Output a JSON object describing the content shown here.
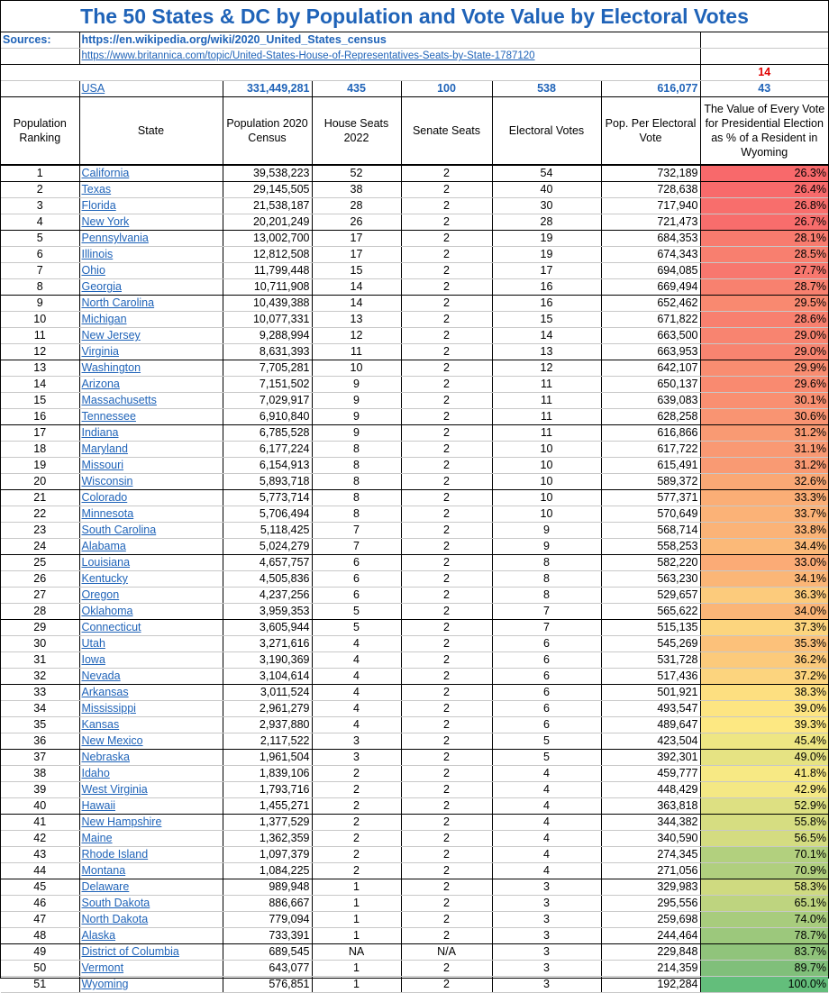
{
  "title": "The 50 States & DC by Population and Vote Value by Electoral Votes",
  "sources_label": "Sources:",
  "source1": "https://en.wikipedia.org/wiki/2020_United_States_census",
  "source2": "https://www.britannica.com/topic/United-States-House-of-Representatives-Seats-by-State-1787120",
  "red_top": "14",
  "red_bottom": "43",
  "usa": {
    "label": "USA",
    "population": "331,449,281",
    "house": "435",
    "senate": "100",
    "electoral": "538",
    "pop_per_ev": "616,077"
  },
  "headers": {
    "rank": "Population Ranking",
    "state": "State",
    "population": "Population 2020 Census",
    "house": "House Seats 2022",
    "senate": "Senate Seats",
    "electoral": "Electoral Votes",
    "pop_per_ev": "Pop. Per Electoral Vote",
    "value": "The Value of Every Vote for Presidential Election as % of a Resident in Wyoming"
  },
  "rows": [
    {
      "rank": "1",
      "state": "California",
      "pop": "39,538,223",
      "house": "52",
      "senate": "2",
      "ev": "54",
      "ppev": "732,189",
      "pct": "26.3%",
      "color": "#f8696b"
    },
    {
      "rank": "2",
      "state": "Texas",
      "pop": "29,145,505",
      "house": "38",
      "senate": "2",
      "ev": "40",
      "ppev": "728,638",
      "pct": "26.4%",
      "color": "#f86a6b"
    },
    {
      "rank": "3",
      "state": "Florida",
      "pop": "21,538,187",
      "house": "28",
      "senate": "2",
      "ev": "30",
      "ppev": "717,940",
      "pct": "26.8%",
      "color": "#f86e6c"
    },
    {
      "rank": "4",
      "state": "New York",
      "pop": "20,201,249",
      "house": "26",
      "senate": "2",
      "ev": "28",
      "ppev": "721,473",
      "pct": "26.7%",
      "color": "#f86d6c"
    },
    {
      "rank": "5",
      "state": "Pennsylvania",
      "pop": "13,002,700",
      "house": "17",
      "senate": "2",
      "ev": "19",
      "ppev": "684,353",
      "pct": "28.1%",
      "color": "#f87b6e"
    },
    {
      "rank": "6",
      "state": "Illinois",
      "pop": "12,812,508",
      "house": "17",
      "senate": "2",
      "ev": "19",
      "ppev": "674,343",
      "pct": "28.5%",
      "color": "#f87f6f"
    },
    {
      "rank": "7",
      "state": "Ohio",
      "pop": "11,799,448",
      "house": "15",
      "senate": "2",
      "ev": "17",
      "ppev": "694,085",
      "pct": "27.7%",
      "color": "#f8776e"
    },
    {
      "rank": "8",
      "state": "Georgia",
      "pop": "10,711,908",
      "house": "14",
      "senate": "2",
      "ev": "16",
      "ppev": "669,494",
      "pct": "28.7%",
      "color": "#f8816f"
    },
    {
      "rank": "9",
      "state": "North Carolina",
      "pop": "10,439,388",
      "house": "14",
      "senate": "2",
      "ev": "16",
      "ppev": "652,462",
      "pct": "29.5%",
      "color": "#f98970"
    },
    {
      "rank": "10",
      "state": "Michigan",
      "pop": "10,077,331",
      "house": "13",
      "senate": "2",
      "ev": "15",
      "ppev": "671,822",
      "pct": "28.6%",
      "color": "#f8806f"
    },
    {
      "rank": "11",
      "state": "New Jersey",
      "pop": "9,288,994",
      "house": "12",
      "senate": "2",
      "ev": "14",
      "ppev": "663,500",
      "pct": "29.0%",
      "color": "#f88470"
    },
    {
      "rank": "12",
      "state": "Virginia",
      "pop": "8,631,393",
      "house": "11",
      "senate": "2",
      "ev": "13",
      "ppev": "663,953",
      "pct": "29.0%",
      "color": "#f88470"
    },
    {
      "rank": "13",
      "state": "Washington",
      "pop": "7,705,281",
      "house": "10",
      "senate": "2",
      "ev": "12",
      "ppev": "642,107",
      "pct": "29.9%",
      "color": "#f98d71"
    },
    {
      "rank": "14",
      "state": "Arizona",
      "pop": "7,151,502",
      "house": "9",
      "senate": "2",
      "ev": "11",
      "ppev": "650,137",
      "pct": "29.6%",
      "color": "#f98a70"
    },
    {
      "rank": "15",
      "state": "Massachusetts",
      "pop": "7,029,917",
      "house": "9",
      "senate": "2",
      "ev": "11",
      "ppev": "639,083",
      "pct": "30.1%",
      "color": "#f98f71"
    },
    {
      "rank": "16",
      "state": "Tennessee",
      "pop": "6,910,840",
      "house": "9",
      "senate": "2",
      "ev": "11",
      "ppev": "628,258",
      "pct": "30.6%",
      "color": "#f99472"
    },
    {
      "rank": "17",
      "state": "Indiana",
      "pop": "6,785,528",
      "house": "9",
      "senate": "2",
      "ev": "11",
      "ppev": "616,866",
      "pct": "31.2%",
      "color": "#f99a73"
    },
    {
      "rank": "18",
      "state": "Maryland",
      "pop": "6,177,224",
      "house": "8",
      "senate": "2",
      "ev": "10",
      "ppev": "617,722",
      "pct": "31.1%",
      "color": "#f99973"
    },
    {
      "rank": "19",
      "state": "Missouri",
      "pop": "6,154,913",
      "house": "8",
      "senate": "2",
      "ev": "10",
      "ppev": "615,491",
      "pct": "31.2%",
      "color": "#f99a73"
    },
    {
      "rank": "20",
      "state": "Wisconsin",
      "pop": "5,893,718",
      "house": "8",
      "senate": "2",
      "ev": "10",
      "ppev": "589,372",
      "pct": "32.6%",
      "color": "#faa875"
    },
    {
      "rank": "21",
      "state": "Colorado",
      "pop": "5,773,714",
      "house": "8",
      "senate": "2",
      "ev": "10",
      "ppev": "577,371",
      "pct": "33.3%",
      "color": "#fbae76"
    },
    {
      "rank": "22",
      "state": "Minnesota",
      "pop": "5,706,494",
      "house": "8",
      "senate": "2",
      "ev": "10",
      "ppev": "570,649",
      "pct": "33.7%",
      "color": "#fbb277"
    },
    {
      "rank": "23",
      "state": "South Carolina",
      "pop": "5,118,425",
      "house": "7",
      "senate": "2",
      "ev": "9",
      "ppev": "568,714",
      "pct": "33.8%",
      "color": "#fbb377"
    },
    {
      "rank": "24",
      "state": "Alabama",
      "pop": "5,024,279",
      "house": "7",
      "senate": "2",
      "ev": "9",
      "ppev": "558,253",
      "pct": "34.4%",
      "color": "#fbb978"
    },
    {
      "rank": "25",
      "state": "Louisiana",
      "pop": "4,657,757",
      "house": "6",
      "senate": "2",
      "ev": "8",
      "ppev": "582,220",
      "pct": "33.0%",
      "color": "#fbab76"
    },
    {
      "rank": "26",
      "state": "Kentucky",
      "pop": "4,505,836",
      "house": "6",
      "senate": "2",
      "ev": "8",
      "ppev": "563,230",
      "pct": "34.1%",
      "color": "#fbb677"
    },
    {
      "rank": "27",
      "state": "Oregon",
      "pop": "4,237,256",
      "house": "6",
      "senate": "2",
      "ev": "8",
      "ppev": "529,657",
      "pct": "36.3%",
      "color": "#fccb7c"
    },
    {
      "rank": "28",
      "state": "Oklahoma",
      "pop": "3,959,353",
      "house": "5",
      "senate": "2",
      "ev": "7",
      "ppev": "565,622",
      "pct": "34.0%",
      "color": "#fbb577"
    },
    {
      "rank": "29",
      "state": "Connecticut",
      "pop": "3,605,944",
      "house": "5",
      "senate": "2",
      "ev": "7",
      "ppev": "515,135",
      "pct": "37.3%",
      "color": "#fcd57e"
    },
    {
      "rank": "30",
      "state": "Utah",
      "pop": "3,271,616",
      "house": "4",
      "senate": "2",
      "ev": "6",
      "ppev": "545,269",
      "pct": "35.3%",
      "color": "#fcc17a"
    },
    {
      "rank": "31",
      "state": "Iowa",
      "pop": "3,190,369",
      "house": "4",
      "senate": "2",
      "ev": "6",
      "ppev": "531,728",
      "pct": "36.2%",
      "color": "#fcca7b"
    },
    {
      "rank": "32",
      "state": "Nevada",
      "pop": "3,104,614",
      "house": "4",
      "senate": "2",
      "ev": "6",
      "ppev": "517,436",
      "pct": "37.2%",
      "color": "#fcd47e"
    },
    {
      "rank": "33",
      "state": "Arkansas",
      "pop": "3,011,524",
      "house": "4",
      "senate": "2",
      "ev": "6",
      "ppev": "501,921",
      "pct": "38.3%",
      "color": "#fddf80"
    },
    {
      "rank": "34",
      "state": "Mississippi",
      "pop": "2,961,279",
      "house": "4",
      "senate": "2",
      "ev": "6",
      "ppev": "493,547",
      "pct": "39.0%",
      "color": "#fde582"
    },
    {
      "rank": "35",
      "state": "Kansas",
      "pop": "2,937,880",
      "house": "4",
      "senate": "2",
      "ev": "6",
      "ppev": "489,647",
      "pct": "39.3%",
      "color": "#fde882"
    },
    {
      "rank": "36",
      "state": "New Mexico",
      "pop": "2,117,522",
      "house": "3",
      "senate": "2",
      "ev": "5",
      "ppev": "423,504",
      "pct": "45.4%",
      "color": "#eee683"
    },
    {
      "rank": "37",
      "state": "Nebraska",
      "pop": "1,961,504",
      "house": "3",
      "senate": "2",
      "ev": "5",
      "ppev": "392,301",
      "pct": "49.0%",
      "color": "#e6e383"
    },
    {
      "rank": "38",
      "state": "Idaho",
      "pop": "1,839,106",
      "house": "2",
      "senate": "2",
      "ev": "4",
      "ppev": "459,777",
      "pct": "41.8%",
      "color": "#f7e984"
    },
    {
      "rank": "39",
      "state": "West Virginia",
      "pop": "1,793,716",
      "house": "2",
      "senate": "2",
      "ev": "4",
      "ppev": "448,429",
      "pct": "42.9%",
      "color": "#f4e884"
    },
    {
      "rank": "40",
      "state": "Hawaii",
      "pop": "1,455,271",
      "house": "2",
      "senate": "2",
      "ev": "4",
      "ppev": "363,818",
      "pct": "52.9%",
      "color": "#dde082"
    },
    {
      "rank": "41",
      "state": "New Hampshire",
      "pop": "1,377,529",
      "house": "2",
      "senate": "2",
      "ev": "4",
      "ppev": "344,382",
      "pct": "55.8%",
      "color": "#d6dd81"
    },
    {
      "rank": "42",
      "state": "Maine",
      "pop": "1,362,359",
      "house": "2",
      "senate": "2",
      "ev": "4",
      "ppev": "340,590",
      "pct": "56.5%",
      "color": "#d4dc81"
    },
    {
      "rank": "43",
      "state": "Rhode Island",
      "pop": "1,097,379",
      "house": "2",
      "senate": "2",
      "ev": "4",
      "ppev": "274,345",
      "pct": "70.1%",
      "color": "#b2d07e"
    },
    {
      "rank": "44",
      "state": "Montana",
      "pop": "1,084,225",
      "house": "2",
      "senate": "2",
      "ev": "4",
      "ppev": "271,056",
      "pct": "70.9%",
      "color": "#b0cf7e"
    },
    {
      "rank": "45",
      "state": "Delaware",
      "pop": "989,948",
      "house": "1",
      "senate": "2",
      "ev": "3",
      "ppev": "329,983",
      "pct": "58.3%",
      "color": "#cfda80"
    },
    {
      "rank": "46",
      "state": "South Dakota",
      "pop": "886,667",
      "house": "1",
      "senate": "2",
      "ev": "3",
      "ppev": "295,556",
      "pct": "65.1%",
      "color": "#bed47f"
    },
    {
      "rank": "47",
      "state": "North Dakota",
      "pop": "779,094",
      "house": "1",
      "senate": "2",
      "ev": "3",
      "ppev": "259,698",
      "pct": "74.0%",
      "color": "#a8cc7d"
    },
    {
      "rank": "48",
      "state": "Alaska",
      "pop": "733,391",
      "house": "1",
      "senate": "2",
      "ev": "3",
      "ppev": "244,464",
      "pct": "78.7%",
      "color": "#9cc87c"
    },
    {
      "rank": "49",
      "state": "District of Columbia",
      "pop": "689,545",
      "house": "NA",
      "senate": "N/A",
      "ev": "3",
      "ppev": "229,848",
      "pct": "83.7%",
      "color": "#90c47b"
    },
    {
      "rank": "50",
      "state": "Vermont",
      "pop": "643,077",
      "house": "1",
      "senate": "2",
      "ev": "3",
      "ppev": "214,359",
      "pct": "89.7%",
      "color": "#80bf7a"
    },
    {
      "rank": "51",
      "state": "Wyoming",
      "pop": "576,851",
      "house": "1",
      "senate": "2",
      "ev": "3",
      "ppev": "192,284",
      "pct": "100.0%",
      "color": "#63be7b"
    }
  ]
}
